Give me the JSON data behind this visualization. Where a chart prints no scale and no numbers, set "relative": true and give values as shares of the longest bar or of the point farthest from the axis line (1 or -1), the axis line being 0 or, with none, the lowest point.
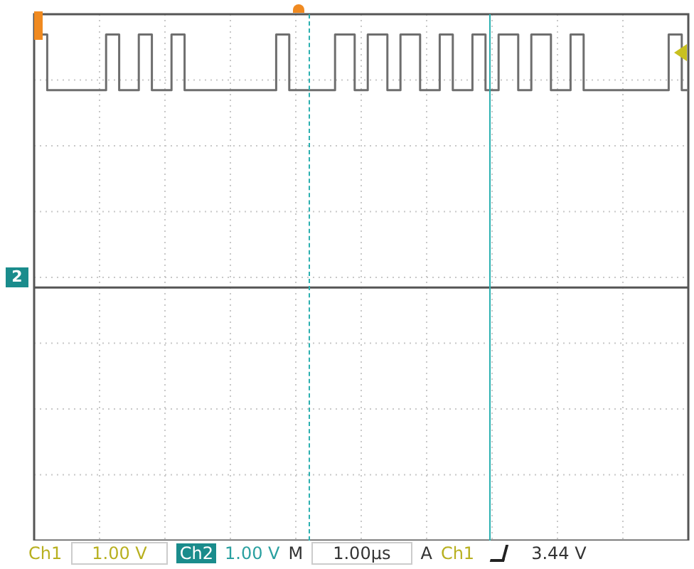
{
  "chart_data": {
    "type": "step",
    "relative": true,
    "categories": [
      null,
      null,
      null,
      null,
      null,
      null,
      null,
      null,
      null,
      null,
      null,
      null,
      null,
      null,
      null,
      null,
      null,
      null,
      null,
      null,
      null,
      null,
      null,
      null,
      null,
      null,
      null,
      null,
      null,
      null,
      null,
      null,
      null,
      null,
      null,
      null,
      null,
      null,
      null,
      null,
      null,
      null,
      null,
      null,
      null,
      null,
      null,
      null,
      null,
      null,
      null,
      null,
      null,
      null,
      null,
      null,
      null,
      null,
      null,
      null,
      null,
      null,
      null,
      null,
      null,
      null,
      null,
      null,
      null,
      null,
      null,
      null,
      null,
      null,
      null,
      null,
      null,
      null,
      null,
      null,
      null,
      null,
      null,
      null,
      null,
      null,
      null,
      null,
      null,
      null,
      null,
      null,
      null,
      null,
      null,
      null,
      null,
      null,
      null,
      null,
      null
    ],
    "grid": true,
    "marker": "none",
    "line_style": "solid",
    "series": [
      {
        "color": "#6e6e6e",
        "values": [
          1,
          1,
          0.89,
          0.89,
          0.89,
          0.89,
          0.89,
          0.89,
          0.89,
          0.89,
          0.89,
          1,
          1,
          0.89,
          0.89,
          0.89,
          1,
          1,
          0.89,
          0.89,
          0.89,
          1,
          1,
          0.89,
          0.89,
          0.89,
          0.89,
          0.89,
          0.89,
          0.89,
          0.89,
          0.89,
          0.89,
          0.89,
          0.89,
          0.89,
          0.89,
          1,
          1,
          0.89,
          0.89,
          0.89,
          0.89,
          0.89,
          0.89,
          0.89,
          1,
          1,
          1,
          0.89,
          0.89,
          1,
          1,
          1,
          0.89,
          0.89,
          1,
          1,
          1,
          0.89,
          0.89,
          0.89,
          1,
          1,
          0.89,
          0.89,
          0.89,
          1,
          1,
          0.89,
          0.89,
          1,
          1,
          1,
          0.89,
          0.89,
          1,
          1,
          1,
          0.89,
          0.89,
          0.89,
          1,
          1,
          0.89,
          0.89,
          0.89,
          0.89,
          0.89,
          0.89,
          0.89,
          0.89,
          0.89,
          0.89,
          0.89,
          0.89,
          0.89,
          1,
          1,
          0.89,
          0.89
        ]
      },
      {
        "color": "#555555",
        "values": [
          0.5,
          0.5,
          0.5,
          0.5,
          0.5,
          0.5,
          0.5,
          0.5,
          0.5,
          0.5,
          0.5,
          0.5,
          0.5,
          0.5,
          0.5,
          0.5,
          0.5,
          0.5,
          0.5,
          0.5,
          0.5,
          0.5,
          0.5,
          0.5,
          0.5,
          0.5,
          0.5,
          0.5,
          0.5,
          0.5,
          0.5,
          0.5,
          0.5,
          0.5,
          0.5,
          0.5,
          0.5,
          0.5,
          0.5,
          0.5,
          0.5,
          0.5,
          0.5,
          0.5,
          0.5,
          0.5,
          0.5,
          0.5,
          0.5,
          0.5,
          0.5,
          0.5,
          0.5,
          0.5,
          0.5,
          0.5,
          0.5,
          0.5,
          0.5,
          0.5,
          0.5,
          0.5,
          0.5,
          0.5,
          0.5,
          0.5,
          0.5,
          0.5,
          0.5,
          0.5,
          0.5,
          0.5,
          0.5,
          0.5,
          0.5,
          0.5,
          0.5,
          0.5,
          0.5,
          0.5,
          0.5,
          0.5,
          0.5,
          0.5,
          0.5,
          0.5,
          0.5,
          0.5,
          0.5,
          0.5,
          0.5,
          0.5,
          0.5,
          0.5,
          0.5,
          0.5,
          0.5,
          0.5,
          0.5,
          0.5,
          0.5
        ]
      }
    ],
    "annotations": [
      "2",
      "Ch1",
      "1.00 V",
      "Ch2",
      "1.00 V",
      "M",
      "1.00µs",
      "A",
      "Ch1",
      "3.44 V"
    ]
  }
}
